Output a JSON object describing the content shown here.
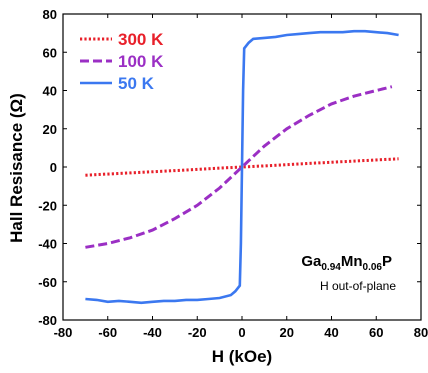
{
  "chart_data": {
    "type": "line",
    "title": "",
    "xlabel": "H (kOe)",
    "ylabel": "Hall Resisance (Ω)",
    "xlim": [
      -80,
      80
    ],
    "ylim": [
      -80,
      80
    ],
    "xticks": [
      -80,
      -60,
      -40,
      -20,
      0,
      20,
      40,
      60,
      80
    ],
    "yticks": [
      -80,
      -60,
      -40,
      -20,
      0,
      20,
      40,
      60,
      80
    ],
    "xtick_labels": [
      "-80",
      "-60",
      "-40",
      "-20",
      "0",
      "20",
      "40",
      "60",
      "80"
    ],
    "ytick_labels": [
      "-80",
      "-60",
      "-40",
      "-20",
      "0",
      "20",
      "40",
      "60",
      "80"
    ],
    "grid": false,
    "legend_position": "top-left",
    "series": [
      {
        "name": "300 K",
        "color": "#e8202a",
        "style": "dotted",
        "x": [
          -70,
          -50,
          -30,
          -10,
          0,
          10,
          30,
          50,
          70
        ],
        "y": [
          -4.3,
          -3.1,
          -1.9,
          -0.6,
          0,
          0.6,
          1.9,
          3.1,
          4.3
        ]
      },
      {
        "name": "100 K",
        "color": "#9b2fc4",
        "style": "dashed",
        "x": [
          -70,
          -60,
          -50,
          -40,
          -30,
          -20,
          -10,
          -5,
          0,
          5,
          10,
          20,
          30,
          40,
          50,
          60,
          67
        ],
        "y": [
          -42,
          -40,
          -37,
          -33,
          -27,
          -20,
          -11,
          -5.5,
          0,
          5.5,
          11,
          20,
          27,
          33,
          37,
          40,
          42
        ]
      },
      {
        "name": "50 K",
        "color": "#3b78f0",
        "style": "solid",
        "x": [
          -70,
          -65,
          -60,
          -55,
          -50,
          -45,
          -40,
          -35,
          -30,
          -25,
          -20,
          -15,
          -10,
          -5,
          -3,
          -1,
          -0.5,
          0,
          0.5,
          1,
          3,
          5,
          10,
          15,
          20,
          25,
          30,
          35,
          40,
          45,
          50,
          55,
          60,
          65,
          70
        ],
        "y": [
          -69,
          -69.5,
          -70.5,
          -70,
          -70.5,
          -71,
          -70.5,
          -70,
          -70,
          -69.5,
          -69.5,
          -69,
          -68.5,
          -67,
          -65,
          -62,
          -40,
          0,
          40,
          62,
          65,
          67,
          67.5,
          68,
          69,
          69.5,
          70,
          70.5,
          70.5,
          70.5,
          71,
          71,
          70.5,
          70,
          69
        ]
      }
    ],
    "annotations": {
      "composition": {
        "base1": "Ga",
        "sub1": "0.94",
        "base2": "Mn",
        "sub2": "0.06",
        "base3": "P"
      },
      "orientation": "H out-of-plane"
    }
  }
}
